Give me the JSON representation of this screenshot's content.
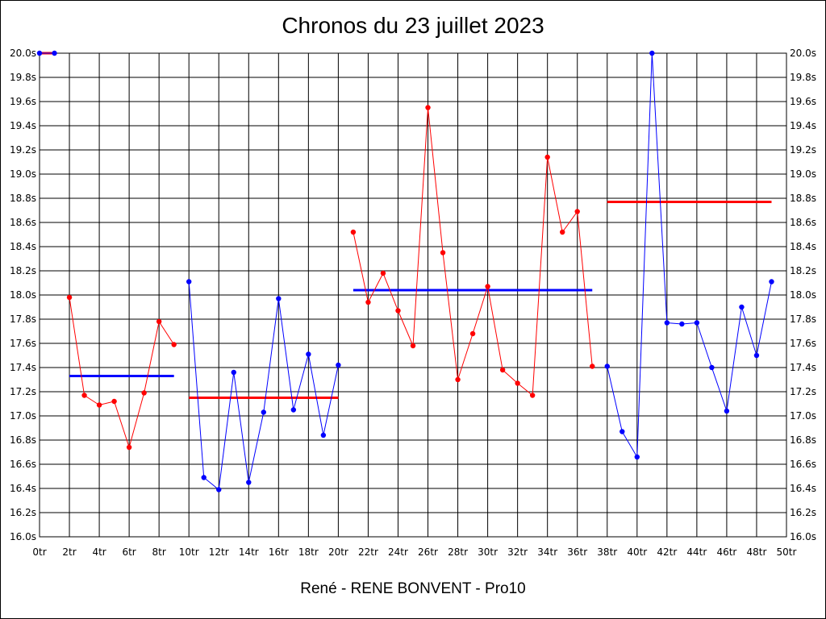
{
  "chart_data": {
    "type": "line",
    "title": "Chronos du 23 juillet 2023",
    "footer": "René - RENE BONVENT - Pro10",
    "xlim": [
      0,
      50
    ],
    "ylim": [
      16.0,
      20.0
    ],
    "y_ticks": [
      "16.0s",
      "16.2s",
      "16.4s",
      "16.6s",
      "16.8s",
      "17.0s",
      "17.2s",
      "17.4s",
      "17.6s",
      "17.8s",
      "18.0s",
      "18.2s",
      "18.4s",
      "18.6s",
      "18.8s",
      "19.0s",
      "19.2s",
      "19.4s",
      "19.6s",
      "19.8s",
      "20.0s"
    ],
    "x_ticks": [
      "0tr",
      "2tr",
      "4tr",
      "6tr",
      "8tr",
      "10tr",
      "12tr",
      "14tr",
      "16tr",
      "18tr",
      "20tr",
      "22tr",
      "24tr",
      "26tr",
      "28tr",
      "30tr",
      "32tr",
      "34tr",
      "36tr",
      "38tr",
      "40tr",
      "42tr",
      "44tr",
      "46tr",
      "48tr",
      "50tr"
    ],
    "grid": true,
    "series": [
      {
        "color": "#0000ff",
        "points": [
          [
            0,
            20.0
          ],
          [
            1,
            20.0
          ]
        ]
      },
      {
        "color": "#ff0000",
        "points": [
          [
            2,
            17.98
          ],
          [
            3,
            17.17
          ],
          [
            4,
            17.09
          ],
          [
            5,
            17.12
          ],
          [
            6,
            16.74
          ],
          [
            7,
            17.19
          ],
          [
            8,
            17.78
          ],
          [
            9,
            17.59
          ]
        ]
      },
      {
        "color": "#0000ff",
        "points": [
          [
            10,
            18.11
          ],
          [
            11,
            16.49
          ],
          [
            12,
            16.39
          ],
          [
            13,
            17.36
          ],
          [
            14,
            16.45
          ],
          [
            15,
            17.03
          ],
          [
            16,
            17.97
          ],
          [
            17,
            17.05
          ],
          [
            18,
            17.51
          ],
          [
            19,
            16.84
          ],
          [
            20,
            17.42
          ]
        ]
      },
      {
        "color": "#ff0000",
        "points": [
          [
            21,
            18.52
          ],
          [
            22,
            17.94
          ],
          [
            23,
            18.18
          ],
          [
            24,
            17.87
          ],
          [
            25,
            17.58
          ],
          [
            26,
            19.55
          ],
          [
            27,
            18.35
          ],
          [
            28,
            17.3
          ],
          [
            29,
            17.68
          ],
          [
            30,
            18.07
          ],
          [
            31,
            17.38
          ],
          [
            32,
            17.27
          ],
          [
            33,
            17.17
          ],
          [
            34,
            19.14
          ],
          [
            35,
            18.52
          ],
          [
            36,
            18.69
          ],
          [
            37,
            17.41
          ]
        ]
      },
      {
        "color": "#0000ff",
        "points": [
          [
            38,
            17.41
          ],
          [
            39,
            16.87
          ],
          [
            40,
            16.66
          ],
          [
            41,
            20.0
          ],
          [
            42,
            17.77
          ],
          [
            43,
            17.76
          ],
          [
            44,
            17.77
          ],
          [
            45,
            17.4
          ],
          [
            46,
            17.04
          ],
          [
            47,
            17.9
          ],
          [
            48,
            17.5
          ],
          [
            49,
            18.11
          ]
        ]
      }
    ],
    "averages": [
      {
        "color": "#ff0000",
        "x": [
          0,
          1
        ],
        "y": 20.0
      },
      {
        "color": "#0000ff",
        "x": [
          2,
          9
        ],
        "y": 17.33
      },
      {
        "color": "#ff0000",
        "x": [
          10,
          20
        ],
        "y": 17.15
      },
      {
        "color": "#0000ff",
        "x": [
          21,
          37
        ],
        "y": 18.04
      },
      {
        "color": "#ff0000",
        "x": [
          38,
          49
        ],
        "y": 18.77
      }
    ]
  }
}
